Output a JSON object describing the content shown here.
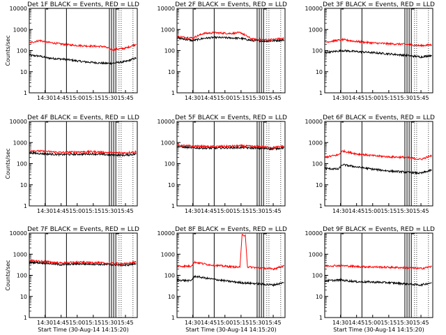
{
  "colors": {
    "events": "#000000",
    "lld": "#ff0000",
    "axis": "#000000",
    "background": "#ffffff"
  },
  "chart_data": [
    {
      "type": "line",
      "title": "Det 1F BLACK = Events, RED = LLD",
      "ylabel": "Counts/sec",
      "xlabel": "",
      "x_tick_labels": [
        "14:30",
        "14:45",
        "15:00",
        "15:15",
        "15:30",
        "15:45"
      ],
      "y_tick_labels": [
        "1",
        "10",
        "100",
        "1000",
        "10000"
      ],
      "yscale": "log",
      "ylim": [
        1,
        10000
      ],
      "xlim": [
        "14:15:20",
        "15:56"
      ],
      "series": [
        {
          "name": "LLD",
          "color": "#ff0000",
          "x": [
            "14:15",
            "14:25",
            "14:32",
            "14:50",
            "15:05",
            "15:25",
            "15:32",
            "15:45",
            "15:55"
          ],
          "values": [
            230,
            300,
            250,
            190,
            170,
            155,
            110,
            130,
            200
          ]
        },
        {
          "name": "Events",
          "color": "#000000",
          "x": [
            "14:15",
            "14:25",
            "14:32",
            "14:50",
            "15:05",
            "15:25",
            "15:32",
            "15:45",
            "15:55"
          ],
          "values": [
            60,
            55,
            45,
            38,
            30,
            25,
            25,
            30,
            45
          ]
        }
      ]
    },
    {
      "type": "line",
      "title": "Det 2F BLACK = Events, RED = LLD",
      "ylabel": "",
      "xlabel": "",
      "x_tick_labels": [
        "14:30",
        "14:45",
        "15:00",
        "15:15",
        "15:30",
        "15:45"
      ],
      "y_tick_labels": [
        "1",
        "10",
        "100",
        "1000",
        "10000"
      ],
      "yscale": "log",
      "ylim": [
        1,
        10000
      ],
      "xlim": [
        "14:15:20",
        "15:56"
      ],
      "series": [
        {
          "name": "LLD",
          "color": "#ff0000",
          "x": [
            "14:15",
            "14:30",
            "14:40",
            "14:50",
            "15:05",
            "15:15",
            "15:25",
            "15:40",
            "15:55"
          ],
          "values": [
            450,
            400,
            650,
            700,
            650,
            700,
            350,
            320,
            380
          ]
        },
        {
          "name": "Events",
          "color": "#000000",
          "x": [
            "14:15",
            "14:30",
            "14:40",
            "14:50",
            "15:05",
            "15:15",
            "15:25",
            "15:40",
            "15:55"
          ],
          "values": [
            400,
            300,
            380,
            420,
            400,
            380,
            300,
            280,
            320
          ]
        }
      ]
    },
    {
      "type": "line",
      "title": "Det 3F BLACK = Events, RED = LLD",
      "ylabel": "",
      "xlabel": "",
      "x_tick_labels": [
        "14:30",
        "14:45",
        "15:00",
        "15:15",
        "15:30",
        "15:45"
      ],
      "y_tick_labels": [
        "1",
        "10",
        "100",
        "1000",
        "10000"
      ],
      "yscale": "log",
      "ylim": [
        1,
        10000
      ],
      "xlim": [
        "14:15:20",
        "15:56"
      ],
      "series": [
        {
          "name": "LLD",
          "color": "#ff0000",
          "x": [
            "14:15",
            "14:32",
            "14:45",
            "15:00",
            "15:15",
            "15:30",
            "15:45",
            "15:55"
          ],
          "values": [
            250,
            330,
            270,
            230,
            210,
            200,
            170,
            190
          ]
        },
        {
          "name": "Events",
          "color": "#000000",
          "x": [
            "14:15",
            "14:32",
            "14:45",
            "15:00",
            "15:15",
            "15:30",
            "15:45",
            "15:55"
          ],
          "values": [
            80,
            100,
            90,
            80,
            70,
            60,
            50,
            60
          ]
        }
      ]
    },
    {
      "type": "line",
      "title": "Det 4F BLACK = Events, RED = LLD",
      "ylabel": "Counts/sec",
      "xlabel": "",
      "x_tick_labels": [
        "14:30",
        "14:45",
        "15:00",
        "15:15",
        "15:30",
        "15:45"
      ],
      "y_tick_labels": [
        "1",
        "10",
        "100",
        "1000",
        "10000"
      ],
      "yscale": "log",
      "ylim": [
        1,
        10000
      ],
      "xlim": [
        "14:15:20",
        "15:56"
      ],
      "series": [
        {
          "name": "LLD",
          "color": "#ff0000",
          "x": [
            "14:15",
            "14:30",
            "14:45",
            "15:00",
            "15:15",
            "15:30",
            "15:45",
            "15:55"
          ],
          "values": [
            420,
            380,
            340,
            360,
            370,
            330,
            320,
            370
          ]
        },
        {
          "name": "Events",
          "color": "#000000",
          "x": [
            "14:15",
            "14:30",
            "14:45",
            "15:00",
            "15:15",
            "15:30",
            "15:45",
            "15:55"
          ],
          "values": [
            330,
            290,
            270,
            280,
            290,
            260,
            250,
            290
          ]
        }
      ]
    },
    {
      "type": "line",
      "title": "Det 5F BLACK = Events, RED = LLD",
      "ylabel": "",
      "xlabel": "",
      "x_tick_labels": [
        "14:30",
        "14:45",
        "15:00",
        "15:15",
        "15:30",
        "15:45"
      ],
      "y_tick_labels": [
        "1",
        "10",
        "100",
        "1000",
        "10000"
      ],
      "yscale": "log",
      "ylim": [
        1,
        10000
      ],
      "xlim": [
        "14:15:20",
        "15:56"
      ],
      "series": [
        {
          "name": "LLD",
          "color": "#ff0000",
          "x": [
            "14:15",
            "14:30",
            "14:45",
            "15:00",
            "15:15",
            "15:30",
            "15:45",
            "15:55"
          ],
          "values": [
            750,
            680,
            640,
            660,
            700,
            640,
            580,
            680
          ]
        },
        {
          "name": "Events",
          "color": "#000000",
          "x": [
            "14:15",
            "14:30",
            "14:45",
            "15:00",
            "15:15",
            "15:30",
            "15:45",
            "15:55"
          ],
          "values": [
            650,
            560,
            540,
            560,
            580,
            540,
            500,
            570
          ]
        }
      ]
    },
    {
      "type": "line",
      "title": "Det 6F BLACK = Events, RED = LLD",
      "ylabel": "",
      "xlabel": "",
      "x_tick_labels": [
        "14:30",
        "14:45",
        "15:00",
        "15:15",
        "15:30",
        "15:45"
      ],
      "y_tick_labels": [
        "1",
        "10",
        "100",
        "1000",
        "10000"
      ],
      "yscale": "log",
      "ylim": [
        1,
        10000
      ],
      "xlim": [
        "14:15:20",
        "15:56"
      ],
      "series": [
        {
          "name": "LLD",
          "color": "#ff0000",
          "x": [
            "14:15",
            "14:28",
            "14:32",
            "14:45",
            "15:00",
            "15:15",
            "15:30",
            "15:45",
            "15:55"
          ],
          "values": [
            200,
            260,
            400,
            290,
            240,
            210,
            200,
            160,
            240
          ]
        },
        {
          "name": "Events",
          "color": "#000000",
          "x": [
            "14:15",
            "14:28",
            "14:32",
            "14:45",
            "15:00",
            "15:15",
            "15:30",
            "15:45",
            "15:55"
          ],
          "values": [
            60,
            55,
            90,
            70,
            55,
            45,
            40,
            35,
            50
          ]
        }
      ]
    },
    {
      "type": "line",
      "title": "Det 7F BLACK = Events, RED = LLD",
      "ylabel": "Counts/sec",
      "xlabel": "Start Time (30-Aug-14 14:15:20)",
      "x_tick_labels": [
        "14:30",
        "14:45",
        "15:00",
        "15:15",
        "15:30",
        "15:45"
      ],
      "y_tick_labels": [
        "1",
        "10",
        "100",
        "1000",
        "10000"
      ],
      "yscale": "log",
      "ylim": [
        1,
        10000
      ],
      "xlim": [
        "14:15:20",
        "15:56"
      ],
      "series": [
        {
          "name": "LLD",
          "color": "#ff0000",
          "x": [
            "14:15",
            "14:30",
            "14:45",
            "15:00",
            "15:15",
            "15:30",
            "15:45",
            "15:55"
          ],
          "values": [
            500,
            450,
            380,
            420,
            400,
            370,
            350,
            430
          ]
        },
        {
          "name": "Events",
          "color": "#000000",
          "x": [
            "14:15",
            "14:30",
            "14:45",
            "15:00",
            "15:15",
            "15:30",
            "15:45",
            "15:55"
          ],
          "values": [
            420,
            380,
            320,
            350,
            340,
            320,
            300,
            360
          ]
        }
      ]
    },
    {
      "type": "line",
      "title": "Det 8F BLACK = Events, RED = LLD",
      "ylabel": "",
      "xlabel": "Start Time (30-Aug-14 14:15:20)",
      "x_tick_labels": [
        "14:30",
        "14:45",
        "15:00",
        "15:15",
        "15:30",
        "15:45"
      ],
      "y_tick_labels": [
        "1",
        "10",
        "100",
        "1000",
        "10000"
      ],
      "yscale": "log",
      "ylim": [
        1,
        10000
      ],
      "xlim": [
        "14:15:20",
        "15:56"
      ],
      "series": [
        {
          "name": "LLD",
          "color": "#ff0000",
          "x": [
            "14:15",
            "14:28",
            "14:32",
            "14:45",
            "15:00",
            "15:14",
            "15:16",
            "15:19",
            "15:21",
            "15:30",
            "15:45",
            "15:55"
          ],
          "values": [
            270,
            270,
            420,
            320,
            270,
            240,
            8000,
            8000,
            250,
            230,
            200,
            280
          ]
        },
        {
          "name": "Events",
          "color": "#000000",
          "x": [
            "14:15",
            "14:28",
            "14:32",
            "14:45",
            "15:00",
            "15:15",
            "15:30",
            "15:45",
            "15:55"
          ],
          "values": [
            60,
            55,
            90,
            70,
            55,
            45,
            40,
            35,
            45
          ]
        }
      ]
    },
    {
      "type": "line",
      "title": "Det 9F BLACK = Events, RED = LLD",
      "ylabel": "",
      "xlabel": "Start Time (30-Aug-14 14:15:20)",
      "x_tick_labels": [
        "14:30",
        "14:45",
        "15:00",
        "15:15",
        "15:30",
        "15:45"
      ],
      "y_tick_labels": [
        "1",
        "10",
        "100",
        "1000",
        "10000"
      ],
      "yscale": "log",
      "ylim": [
        1,
        10000
      ],
      "xlim": [
        "14:15:20",
        "15:56"
      ],
      "series": [
        {
          "name": "LLD",
          "color": "#ff0000",
          "x": [
            "14:15",
            "14:30",
            "14:45",
            "15:00",
            "15:15",
            "15:30",
            "15:45",
            "15:55"
          ],
          "values": [
            280,
            290,
            260,
            250,
            240,
            230,
            210,
            260
          ]
        },
        {
          "name": "Events",
          "color": "#000000",
          "x": [
            "14:15",
            "14:30",
            "14:45",
            "15:00",
            "15:15",
            "15:30",
            "15:45",
            "15:55"
          ],
          "values": [
            55,
            60,
            50,
            48,
            45,
            40,
            35,
            45
          ]
        }
      ]
    }
  ]
}
